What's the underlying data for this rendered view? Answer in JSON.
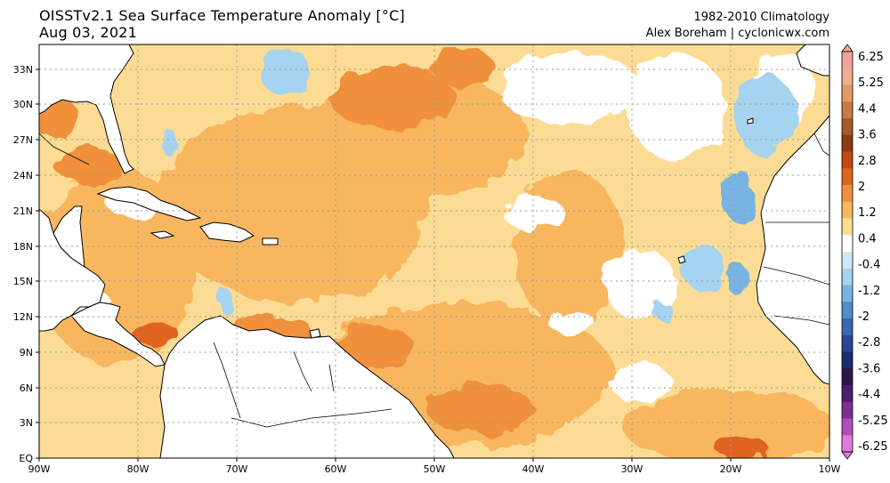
{
  "header": {
    "title_line1": "OISSTv2.1 Sea Surface Temperature Anomaly [°C]",
    "title_line2": "Aug 03, 2021",
    "climatology": "1982-2010 Climatology",
    "credit": "Alex Boreham | cyclonicwx.com"
  },
  "map": {
    "longitude_ticks": [
      "90W",
      "80W",
      "70W",
      "60W",
      "50W",
      "40W",
      "30W",
      "20W",
      "10W"
    ],
    "latitude_ticks": [
      "EQ",
      "3N",
      "6N",
      "9N",
      "12N",
      "15N",
      "18N",
      "21N",
      "24N",
      "27N",
      "30N",
      "33N"
    ]
  },
  "colorbar": {
    "labels": [
      "6.25",
      "5.25",
      "4.4",
      "3.6",
      "2.8",
      "2",
      "1.2",
      "0.4",
      "-0.4",
      "-1.2",
      "-2",
      "-2.8",
      "-3.6",
      "-4.4",
      "-5.25",
      "-6.25"
    ],
    "colors": [
      "#f4a09a",
      "#efb08e",
      "#e39a66",
      "#c97a3e",
      "#a65a25",
      "#8c3b12",
      "#c24a12",
      "#e06420",
      "#f0903a",
      "#f8b65e",
      "#fcdc94",
      "#ffffff",
      "#cfe8f6",
      "#a6d3ef",
      "#78b4e2",
      "#4e8ecd",
      "#3a66b5",
      "#2c4496",
      "#1e2a72",
      "#2a1648",
      "#4a1e6a",
      "#7a2e92",
      "#b04cc0",
      "#e27adc"
    ]
  },
  "field_colors": {
    "near_zero": "#ffffff",
    "weak_warm": "#fcdc94",
    "moderate_warm": "#f8b65e",
    "strong_warm": "#f0903a",
    "very_warm": "#e06420",
    "weak_cool": "#a6d3ef",
    "cool": "#78b4e2"
  }
}
